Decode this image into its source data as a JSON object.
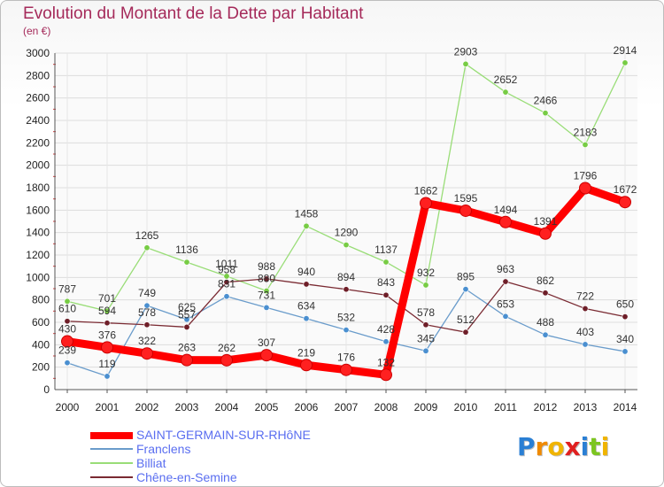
{
  "chart_data": {
    "type": "line",
    "title": "Evolution du Montant de la Dette par Habitant",
    "subtitle": "(en €)",
    "xlabel": "",
    "ylabel": "",
    "x": [
      "2000",
      "2001",
      "2002",
      "2003",
      "2004",
      "2005",
      "2006",
      "2007",
      "2008",
      "2009",
      "2010",
      "2011",
      "2012",
      "2013",
      "2014"
    ],
    "ylim": [
      0,
      3000
    ],
    "yticks": [
      0,
      200,
      400,
      600,
      800,
      1000,
      1200,
      1400,
      1600,
      1800,
      2000,
      2200,
      2400,
      2600,
      2800,
      3000
    ],
    "grid": true,
    "legend_position": "bottom-left",
    "series": [
      {
        "name": "SAINT-GERMAIN-SUR-RHôNE",
        "color": "#ff0000",
        "marker": "#ff2020",
        "values": [
          430,
          376,
          322,
          263,
          262,
          307,
          219,
          176,
          132,
          1662,
          1595,
          1494,
          1391,
          1796,
          1672
        ],
        "labels": [
          "430",
          "376",
          "322",
          "263",
          "262",
          "307",
          "219",
          "176",
          "132",
          "1662",
          "1595",
          "1494",
          "1391",
          "1796",
          "1672"
        ]
      },
      {
        "name": "Franclens",
        "color": "#6a9ccb",
        "marker": "#4a8fd0",
        "values": [
          239,
          119,
          749,
          625,
          831,
          731,
          634,
          532,
          428,
          345,
          895,
          653,
          488,
          403,
          340
        ],
        "labels": [
          "239",
          "119",
          "749",
          "625",
          "831",
          "731",
          "634",
          "532",
          "428",
          "345",
          "895",
          "653",
          "488",
          "403",
          "340"
        ]
      },
      {
        "name": "Billiat",
        "color": "#99dd77",
        "marker": "#77cc44",
        "values": [
          787,
          701,
          1265,
          1136,
          1011,
          880,
          1458,
          1290,
          1137,
          932,
          2903,
          2652,
          2466,
          2183,
          2914
        ],
        "labels": [
          "787",
          "701",
          "1265",
          "1136",
          "1011",
          "880",
          "1458",
          "1290",
          "1137",
          "932",
          "2903",
          "2652",
          "2466",
          "2183",
          "2914"
        ]
      },
      {
        "name": "Chêne-en-Semine",
        "color": "#7a2a32",
        "marker": "#6e1e28",
        "values": [
          610,
          594,
          578,
          557,
          958,
          988,
          940,
          894,
          843,
          578,
          512,
          963,
          862,
          722,
          650
        ],
        "labels": [
          "610",
          "594",
          "578",
          "557",
          "958",
          "988",
          "940",
          "894",
          "843",
          "578",
          "512",
          "963",
          "862",
          "722",
          "650"
        ]
      }
    ]
  },
  "logo": {
    "letters": [
      "P",
      "r",
      "o",
      "x",
      "i",
      "t",
      "i"
    ],
    "colors": [
      "#2a7fd4",
      "#f08a00",
      "#f0b400",
      "#e02020",
      "#2a7fd4",
      "#7cc520",
      "#f0b400"
    ]
  }
}
